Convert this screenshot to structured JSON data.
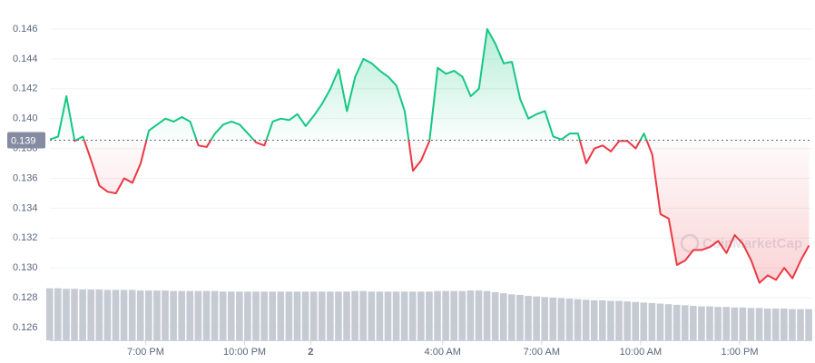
{
  "chart_data": {
    "type": "line",
    "watermark": "CoinMarketCap",
    "x": [
      -7.9,
      -7.65,
      -7.4,
      -7.15,
      -6.9,
      -6.65,
      -6.4,
      -6.15,
      -5.9,
      -5.65,
      -5.4,
      -5.15,
      -4.9,
      -4.65,
      -4.4,
      -4.15,
      -3.9,
      -3.65,
      -3.4,
      -3.15,
      -2.9,
      -2.65,
      -2.4,
      -2.15,
      -1.9,
      -1.65,
      -1.4,
      -1.15,
      -0.9,
      -0.65,
      -0.4,
      -0.15,
      0.1,
      0.35,
      0.6,
      0.85,
      1.1,
      1.35,
      1.6,
      1.85,
      2.1,
      2.35,
      2.6,
      2.85,
      3.1,
      3.35,
      3.6,
      3.85,
      4.1,
      4.35,
      4.6,
      4.85,
      5.1,
      5.35,
      5.6,
      5.85,
      6.1,
      6.35,
      6.6,
      6.85,
      7.1,
      7.35,
      7.6,
      7.85,
      8.1,
      8.35,
      8.6,
      8.85,
      9.1,
      9.35,
      9.6,
      9.85,
      10.1,
      10.35,
      10.6,
      10.85,
      11.1,
      11.35,
      11.6,
      11.85,
      12.1,
      12.35,
      12.6,
      12.85,
      13.1,
      13.35,
      13.6,
      13.85,
      14.1,
      14.35,
      14.6,
      14.85,
      15.1
    ],
    "series": [
      {
        "name": "Price",
        "colors": {
          "above": "#16c784",
          "below": "#ea3943"
        },
        "values": [
          0.1386,
          0.1388,
          0.1415,
          0.1385,
          0.1388,
          0.1372,
          0.1355,
          0.1351,
          0.135,
          0.136,
          0.1357,
          0.137,
          0.1392,
          0.1396,
          0.14,
          0.1398,
          0.1401,
          0.1398,
          0.1382,
          0.1381,
          0.139,
          0.1396,
          0.1398,
          0.1396,
          0.139,
          0.1384,
          0.1382,
          0.1398,
          0.14,
          0.1399,
          0.1403,
          0.1395,
          0.1402,
          0.141,
          0.142,
          0.1433,
          0.1405,
          0.1428,
          0.144,
          0.1437,
          0.1432,
          0.1428,
          0.1422,
          0.1405,
          0.1365,
          0.1372,
          0.1385,
          0.1434,
          0.143,
          0.1432,
          0.1428,
          0.1415,
          0.142,
          0.146,
          0.145,
          0.1437,
          0.1438,
          0.1413,
          0.14,
          0.1403,
          0.1405,
          0.1388,
          0.1386,
          0.139,
          0.139,
          0.137,
          0.138,
          0.1382,
          0.1378,
          0.1385,
          0.1385,
          0.138,
          0.139,
          0.1376,
          0.1336,
          0.1333,
          0.1302,
          0.1305,
          0.1312,
          0.1312,
          0.1314,
          0.1318,
          0.131,
          0.1322,
          0.1316,
          0.1305,
          0.129,
          0.1295,
          0.1292,
          0.13,
          0.1293,
          0.1305,
          0.1315
        ]
      },
      {
        "name": "Volume",
        "axis": "y2",
        "color": "#c5cad3",
        "values": [
          95,
          95,
          94,
          94,
          93,
          93,
          93,
          92,
          92,
          92,
          92,
          91,
          91,
          91,
          91,
          90,
          90,
          90,
          90,
          90,
          90,
          89,
          89,
          89,
          89,
          89,
          89,
          89,
          89,
          89,
          89,
          89,
          89,
          89,
          89,
          89,
          89,
          90,
          90,
          89,
          89,
          89,
          89,
          89,
          89,
          89,
          89,
          90,
          90,
          90,
          90,
          91,
          91,
          90,
          88,
          86,
          84,
          83,
          81,
          80,
          79,
          78,
          77,
          76,
          75,
          74,
          73,
          73,
          72,
          72,
          71,
          70,
          69,
          68,
          67,
          66,
          65,
          64,
          63,
          62,
          62,
          61,
          61,
          60,
          60,
          59,
          59,
          58,
          58,
          58,
          57,
          57,
          57
        ]
      }
    ],
    "baseline": {
      "value": 0.13855,
      "label": "0.139"
    },
    "xlim": [
      -7.9,
      15.2
    ],
    "xticks": [
      {
        "value": -5,
        "label": "7:00 PM"
      },
      {
        "value": -2,
        "label": "10:00 PM"
      },
      {
        "value": 0,
        "label": "2"
      },
      {
        "value": 4,
        "label": "4:00 AM"
      },
      {
        "value": 7,
        "label": "7:00 AM"
      },
      {
        "value": 10,
        "label": "10:00 AM"
      },
      {
        "value": 13,
        "label": "1:00 PM"
      }
    ],
    "ylim": [
      0.125,
      0.147
    ],
    "yticks": [
      0.126,
      0.128,
      {
        "value": 0.13,
        "label": "0.130"
      },
      0.132,
      0.134,
      0.136,
      0.138,
      {
        "value": 0.14,
        "label": "0.140"
      },
      0.142,
      0.144,
      0.146
    ],
    "y2lim": [
      0,
      600
    ],
    "grid": true
  }
}
